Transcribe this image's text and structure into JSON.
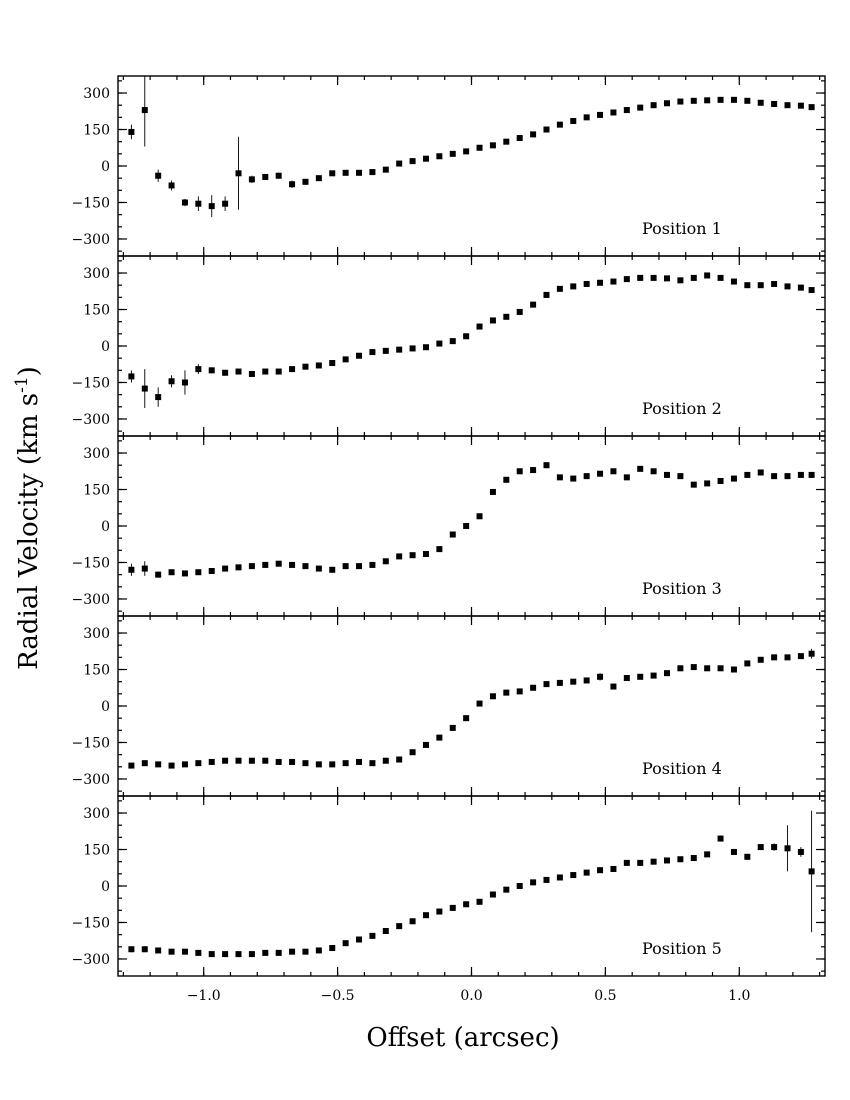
{
  "chart_data": {
    "type": "scatter",
    "xlabel": "Offset (arcsec)",
    "ylabel": "Radial Velocity (km s",
    "ylabel_superscript": "-1",
    "ylabel_close": ")",
    "xlim": [
      -1.32,
      1.32
    ],
    "ylim": [
      -370,
      370
    ],
    "x_ticks": [
      -1.0,
      -0.5,
      0.0,
      0.5,
      1.0
    ],
    "x_tick_labels": [
      "-1.0",
      "-0.5",
      "0.0",
      "0.5",
      "1.0"
    ],
    "y_ticks": [
      -300,
      -150,
      0,
      150,
      300
    ],
    "y_tick_labels": [
      "-300",
      "-150",
      "0",
      "150",
      "300"
    ],
    "panels": [
      {
        "label": "Position 1",
        "x": [
          -1.27,
          -1.22,
          -1.17,
          -1.12,
          -1.07,
          -1.02,
          -0.97,
          -0.92,
          -0.87,
          -0.82,
          -0.77,
          -0.72,
          -0.67,
          -0.62,
          -0.57,
          -0.52,
          -0.47,
          -0.42,
          -0.37,
          -0.32,
          -0.27,
          -0.22,
          -0.17,
          -0.12,
          -0.07,
          -0.02,
          0.03,
          0.08,
          0.13,
          0.18,
          0.23,
          0.28,
          0.33,
          0.38,
          0.43,
          0.48,
          0.53,
          0.58,
          0.63,
          0.68,
          0.73,
          0.78,
          0.83,
          0.88,
          0.93,
          0.98,
          1.03,
          1.08,
          1.13,
          1.18,
          1.23,
          1.27
        ],
        "y": [
          140,
          230,
          -40,
          -80,
          -150,
          -155,
          -165,
          -155,
          -30,
          -55,
          -45,
          -40,
          -75,
          -65,
          -50,
          -30,
          -28,
          -28,
          -25,
          -15,
          10,
          20,
          30,
          40,
          50,
          60,
          75,
          85,
          100,
          115,
          130,
          150,
          170,
          185,
          200,
          210,
          220,
          230,
          240,
          250,
          258,
          265,
          268,
          270,
          272,
          272,
          268,
          260,
          255,
          250,
          248,
          242
        ],
        "yerr": [
          30,
          150,
          25,
          20,
          15,
          30,
          45,
          30,
          150,
          15,
          12,
          12,
          15,
          12,
          10,
          10,
          8,
          8,
          8,
          8,
          8,
          8,
          8,
          8,
          8,
          8,
          8,
          8,
          8,
          8,
          8,
          8,
          8,
          8,
          8,
          8,
          8,
          8,
          8,
          8,
          8,
          8,
          8,
          8,
          8,
          8,
          8,
          8,
          8,
          8,
          8,
          10
        ]
      },
      {
        "label": "Position 2",
        "x": [
          -1.27,
          -1.22,
          -1.17,
          -1.12,
          -1.07,
          -1.02,
          -0.97,
          -0.92,
          -0.87,
          -0.82,
          -0.77,
          -0.72,
          -0.67,
          -0.62,
          -0.57,
          -0.52,
          -0.47,
          -0.42,
          -0.37,
          -0.32,
          -0.27,
          -0.22,
          -0.17,
          -0.12,
          -0.07,
          -0.02,
          0.03,
          0.08,
          0.13,
          0.18,
          0.23,
          0.28,
          0.33,
          0.38,
          0.43,
          0.48,
          0.53,
          0.58,
          0.63,
          0.68,
          0.73,
          0.78,
          0.83,
          0.88,
          0.93,
          0.98,
          1.03,
          1.08,
          1.13,
          1.18,
          1.23,
          1.27
        ],
        "y": [
          -125,
          -175,
          -210,
          -145,
          -150,
          -95,
          -100,
          -110,
          -105,
          -115,
          -105,
          -105,
          -95,
          -85,
          -80,
          -70,
          -55,
          -40,
          -25,
          -20,
          -15,
          -10,
          -5,
          10,
          20,
          40,
          80,
          105,
          120,
          140,
          170,
          210,
          235,
          245,
          255,
          260,
          265,
          275,
          280,
          280,
          278,
          270,
          280,
          290,
          280,
          265,
          250,
          250,
          255,
          245,
          240,
          230
        ],
        "yerr": [
          25,
          80,
          40,
          25,
          50,
          20,
          12,
          12,
          10,
          10,
          10,
          10,
          8,
          8,
          8,
          8,
          8,
          8,
          8,
          8,
          8,
          8,
          8,
          8,
          8,
          8,
          8,
          8,
          8,
          8,
          8,
          8,
          8,
          8,
          8,
          8,
          8,
          8,
          8,
          8,
          8,
          8,
          8,
          8,
          8,
          8,
          8,
          8,
          8,
          8,
          8,
          8
        ]
      },
      {
        "label": "Position 3",
        "x": [
          -1.27,
          -1.22,
          -1.17,
          -1.12,
          -1.07,
          -1.02,
          -0.97,
          -0.92,
          -0.87,
          -0.82,
          -0.77,
          -0.72,
          -0.67,
          -0.62,
          -0.57,
          -0.52,
          -0.47,
          -0.42,
          -0.37,
          -0.32,
          -0.27,
          -0.22,
          -0.17,
          -0.12,
          -0.07,
          -0.02,
          0.03,
          0.08,
          0.13,
          0.18,
          0.23,
          0.28,
          0.33,
          0.38,
          0.43,
          0.48,
          0.53,
          0.58,
          0.63,
          0.68,
          0.73,
          0.78,
          0.83,
          0.88,
          0.93,
          0.98,
          1.03,
          1.08,
          1.13,
          1.18,
          1.23,
          1.27
        ],
        "y": [
          -180,
          -175,
          -200,
          -190,
          -195,
          -190,
          -185,
          -175,
          -170,
          -165,
          -160,
          -155,
          -160,
          -165,
          -175,
          -180,
          -165,
          -165,
          -160,
          -145,
          -125,
          -120,
          -115,
          -95,
          -35,
          0,
          40,
          140,
          190,
          225,
          230,
          250,
          200,
          195,
          205,
          215,
          225,
          200,
          235,
          225,
          210,
          205,
          170,
          175,
          185,
          195,
          210,
          220,
          205,
          205,
          210,
          210
        ],
        "yerr": [
          25,
          30,
          12,
          10,
          10,
          10,
          10,
          10,
          10,
          10,
          10,
          10,
          10,
          10,
          10,
          10,
          10,
          10,
          10,
          10,
          10,
          10,
          10,
          10,
          10,
          10,
          10,
          10,
          10,
          10,
          10,
          12,
          10,
          10,
          10,
          10,
          10,
          10,
          10,
          10,
          10,
          10,
          10,
          10,
          10,
          10,
          10,
          10,
          10,
          10,
          10,
          12
        ]
      },
      {
        "label": "Position 4",
        "x": [
          -1.27,
          -1.22,
          -1.17,
          -1.12,
          -1.07,
          -1.02,
          -0.97,
          -0.92,
          -0.87,
          -0.82,
          -0.77,
          -0.72,
          -0.67,
          -0.62,
          -0.57,
          -0.52,
          -0.47,
          -0.42,
          -0.37,
          -0.32,
          -0.27,
          -0.22,
          -0.17,
          -0.12,
          -0.07,
          -0.02,
          0.03,
          0.08,
          0.13,
          0.18,
          0.23,
          0.28,
          0.33,
          0.38,
          0.43,
          0.48,
          0.53,
          0.58,
          0.63,
          0.68,
          0.73,
          0.78,
          0.83,
          0.88,
          0.93,
          0.98,
          1.03,
          1.08,
          1.13,
          1.18,
          1.23,
          1.27
        ],
        "y": [
          -245,
          -235,
          -240,
          -245,
          -240,
          -235,
          -230,
          -225,
          -225,
          -225,
          -225,
          -230,
          -230,
          -235,
          -240,
          -240,
          -235,
          -230,
          -235,
          -225,
          -220,
          -190,
          -160,
          -130,
          -90,
          -50,
          10,
          40,
          55,
          60,
          75,
          90,
          95,
          100,
          105,
          120,
          80,
          115,
          120,
          125,
          135,
          155,
          160,
          155,
          155,
          150,
          175,
          190,
          200,
          200,
          205,
          215
        ],
        "yerr": [
          10,
          10,
          10,
          10,
          10,
          10,
          10,
          10,
          10,
          10,
          10,
          10,
          10,
          10,
          10,
          10,
          10,
          10,
          10,
          10,
          10,
          10,
          10,
          10,
          10,
          10,
          10,
          10,
          10,
          10,
          10,
          10,
          10,
          10,
          10,
          15,
          10,
          10,
          10,
          10,
          10,
          10,
          10,
          10,
          10,
          10,
          10,
          10,
          10,
          10,
          10,
          20
        ]
      },
      {
        "label": "Position 5",
        "x": [
          -1.27,
          -1.22,
          -1.17,
          -1.12,
          -1.07,
          -1.02,
          -0.97,
          -0.92,
          -0.87,
          -0.82,
          -0.77,
          -0.72,
          -0.67,
          -0.62,
          -0.57,
          -0.52,
          -0.47,
          -0.42,
          -0.37,
          -0.32,
          -0.27,
          -0.22,
          -0.17,
          -0.12,
          -0.07,
          -0.02,
          0.03,
          0.08,
          0.13,
          0.18,
          0.23,
          0.28,
          0.33,
          0.38,
          0.43,
          0.48,
          0.53,
          0.58,
          0.63,
          0.68,
          0.73,
          0.78,
          0.83,
          0.88,
          0.93,
          0.98,
          1.03,
          1.08,
          1.13,
          1.18,
          1.23,
          1.27
        ],
        "y": [
          -260,
          -260,
          -265,
          -270,
          -270,
          -275,
          -280,
          -280,
          -280,
          -280,
          -275,
          -275,
          -270,
          -270,
          -265,
          -255,
          -235,
          -220,
          -205,
          -185,
          -165,
          -145,
          -120,
          -105,
          -90,
          -75,
          -65,
          -35,
          -15,
          0,
          15,
          25,
          35,
          45,
          55,
          65,
          70,
          95,
          95,
          100,
          105,
          110,
          115,
          130,
          195,
          140,
          120,
          160,
          160,
          155,
          140,
          60
        ],
        "yerr": [
          12,
          12,
          10,
          10,
          10,
          10,
          10,
          10,
          10,
          10,
          10,
          10,
          10,
          10,
          10,
          10,
          10,
          10,
          10,
          10,
          10,
          10,
          10,
          10,
          10,
          10,
          10,
          10,
          10,
          10,
          10,
          10,
          10,
          10,
          10,
          10,
          10,
          10,
          10,
          10,
          10,
          10,
          10,
          10,
          12,
          12,
          12,
          12,
          15,
          95,
          20,
          250
        ]
      }
    ]
  }
}
